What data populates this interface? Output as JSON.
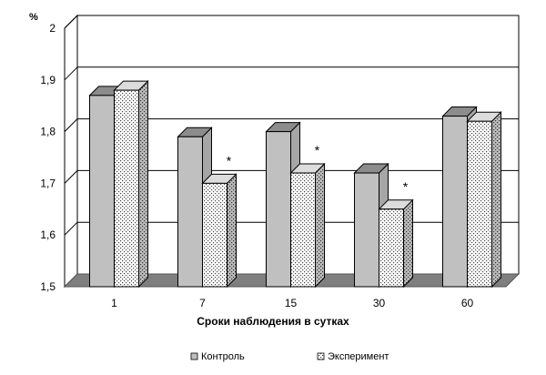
{
  "chart_data": {
    "type": "bar",
    "title": "",
    "unit_label": "%",
    "xlabel": "Сроки наблюдения в сутках",
    "ylabel": "",
    "categories": [
      "1",
      "7",
      "15",
      "30",
      "60"
    ],
    "series": [
      {
        "name": "Контроль",
        "values": [
          1.87,
          1.79,
          1.8,
          1.72,
          1.83
        ],
        "color": "#c0c0c0",
        "pattern": "solid"
      },
      {
        "name": "Эксперимент",
        "values": [
          1.88,
          1.7,
          1.72,
          1.65,
          1.82
        ],
        "color": "#ffffff",
        "pattern": "dotted"
      }
    ],
    "significance": [
      {
        "category": "7",
        "series": "Эксперимент",
        "mark": "*"
      },
      {
        "category": "15",
        "series": "Эксперимент",
        "mark": "*"
      },
      {
        "category": "30",
        "series": "Эксперимент",
        "mark": "*"
      }
    ],
    "ylim": [
      1.5,
      2.0
    ],
    "yticks": [
      1.5,
      1.6,
      1.7,
      1.8,
      1.9,
      2.0
    ],
    "ytick_labels": [
      "1,5",
      "1,6",
      "1,7",
      "1,8",
      "1,9",
      "2"
    ],
    "grid": true,
    "legend": "bottom",
    "style": "3d-bar"
  }
}
